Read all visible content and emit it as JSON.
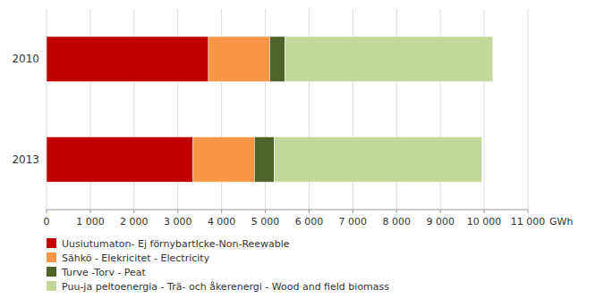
{
  "chart_data": {
    "type": "bar",
    "orientation": "horizontal",
    "stacked": true,
    "grid": true,
    "legend": "bottom",
    "categories": [
      "2010",
      "2013"
    ],
    "xlabel": "GWh",
    "series": [
      {
        "name": "Uusiutumaton- Ej förnybartIcke-Non-Reewable",
        "color": "#C00000",
        "values": [
          3700,
          3350
        ]
      },
      {
        "name": "Sähkö - Elekricitet - Electricity",
        "color": "#F79646",
        "values": [
          1400,
          1400
        ]
      },
      {
        "name": "Turve -Torv - Peat",
        "color": "#4F6228",
        "values": [
          350,
          450
        ]
      },
      {
        "name": "Puu-ja peltoenergia - Trä- och åkerenergi - Wood and field biomass",
        "color": "#C4D79B",
        "values": [
          4750,
          4750
        ]
      }
    ],
    "xlim": [
      0,
      11000
    ],
    "xticks": [
      0,
      {
        "value": 1000,
        "label": "1 000"
      },
      {
        "value": 2000,
        "label": "2 000"
      },
      {
        "value": 3000,
        "label": "3 000"
      },
      {
        "value": 4000,
        "label": "4 000"
      },
      {
        "value": 5000,
        "label": "5 000"
      },
      {
        "value": 6000,
        "label": "6 000"
      },
      {
        "value": 7000,
        "label": "7 000"
      },
      {
        "value": 8000,
        "label": "8 000"
      },
      {
        "value": 9000,
        "label": "9 000"
      },
      {
        "value": 10000,
        "label": "10 000"
      },
      {
        "value": 11000,
        "label": "11 000"
      }
    ]
  }
}
